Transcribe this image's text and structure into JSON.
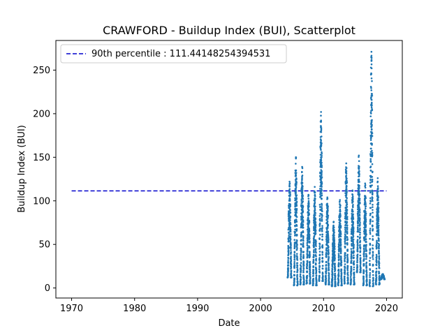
{
  "chart_data": {
    "type": "scatter",
    "title": "CRAWFORD - Buildup Index (BUI), Scatterplot",
    "xlabel": "Date",
    "ylabel": "Buildup Index (BUI)",
    "xlim": [
      1967.5,
      2022.5
    ],
    "ylim": [
      -11.5,
      284
    ],
    "xticks": [
      1970,
      1980,
      1990,
      2000,
      2010,
      2020
    ],
    "yticks": [
      0,
      50,
      100,
      150,
      200,
      250
    ],
    "grid": false,
    "legend_placement": "top-left",
    "reference_line": {
      "label": "90th percentile : 111.44148254394531",
      "value": 111.44148254394531,
      "x_range": [
        1970,
        2020
      ],
      "color": "#0000cc",
      "style": "dashed"
    },
    "series": [
      {
        "color": "#1f77b4",
        "seasons": [
          {
            "year": 2004.6,
            "min": 12,
            "max": 122
          },
          {
            "year": 2005.6,
            "min": 3,
            "max": 150
          },
          {
            "year": 2006.6,
            "min": 4,
            "max": 139
          },
          {
            "year": 2007.6,
            "min": 5,
            "max": 107
          },
          {
            "year": 2008.6,
            "min": 3,
            "max": 116
          },
          {
            "year": 2009.6,
            "min": 8,
            "max": 202
          },
          {
            "year": 2010.6,
            "min": 4,
            "max": 104
          },
          {
            "year": 2011.6,
            "min": 2,
            "max": 76
          },
          {
            "year": 2012.6,
            "min": 3,
            "max": 101
          },
          {
            "year": 2013.6,
            "min": 5,
            "max": 143
          },
          {
            "year": 2014.6,
            "min": 4,
            "max": 112
          },
          {
            "year": 2015.6,
            "min": 18,
            "max": 152
          },
          {
            "year": 2016.6,
            "min": 3,
            "max": 120
          },
          {
            "year": 2017.6,
            "min": 2,
            "max": 271
          },
          {
            "year": 2018.6,
            "min": 4,
            "max": 126
          },
          {
            "year": 2019.4,
            "min": 10,
            "max": 16
          }
        ]
      }
    ]
  }
}
